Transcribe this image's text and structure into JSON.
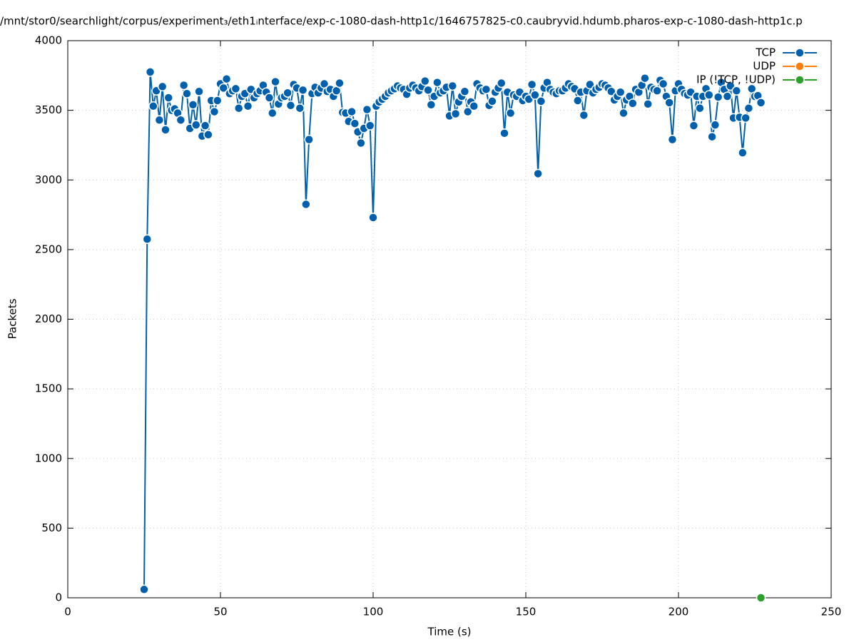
{
  "chart_data": {
    "type": "line",
    "title": "/mnt/stor0/searchlight/corpus/experiment₃/eth1ᵢnterface/exp-c-1080-dash-http1c/1646757825-c0.caubryvid.hdumb.pharos-exp-c-1080-dash-http1c.p",
    "x_label": "Time (s)",
    "y_label": "Packets",
    "xlim": [
      0,
      250
    ],
    "xticks": [
      0,
      50,
      100,
      150,
      200,
      250
    ],
    "ylim": [
      0,
      4000
    ],
    "yticks": [
      0,
      500,
      1000,
      1500,
      2000,
      2500,
      3000,
      3500,
      4000
    ],
    "grid": true,
    "legend": "top-right",
    "series": [
      {
        "name": "TCP",
        "color": "#0060ad",
        "x": [
          25,
          26,
          27,
          28,
          29,
          30,
          31,
          32,
          33,
          34,
          35,
          36,
          37,
          38,
          39,
          40,
          41,
          42,
          43,
          44,
          45,
          46,
          47,
          48,
          49,
          50,
          51,
          52,
          53,
          54,
          55,
          56,
          57,
          58,
          59,
          60,
          61,
          62,
          63,
          64,
          65,
          66,
          67,
          68,
          69,
          70,
          71,
          72,
          73,
          74,
          75,
          76,
          77,
          78,
          79,
          80,
          81,
          82,
          83,
          84,
          85,
          86,
          87,
          88,
          89,
          90,
          91,
          92,
          93,
          94,
          95,
          96,
          97,
          98,
          99,
          100,
          101,
          102,
          103,
          104,
          105,
          106,
          107,
          108,
          109,
          110,
          111,
          112,
          113,
          114,
          115,
          116,
          117,
          118,
          119,
          120,
          121,
          122,
          123,
          124,
          125,
          126,
          127,
          128,
          129,
          130,
          131,
          132,
          133,
          134,
          135,
          136,
          137,
          138,
          139,
          140,
          141,
          142,
          143,
          144,
          145,
          146,
          147,
          148,
          149,
          150,
          151,
          152,
          153,
          154,
          155,
          156,
          157,
          158,
          159,
          160,
          161,
          162,
          163,
          164,
          165,
          166,
          167,
          168,
          169,
          170,
          171,
          172,
          173,
          174,
          175,
          176,
          177,
          178,
          179,
          180,
          181,
          182,
          183,
          184,
          185,
          186,
          187,
          188,
          189,
          190,
          191,
          192,
          193,
          194,
          195,
          196,
          197,
          198,
          199,
          200,
          201,
          202,
          203,
          204,
          205,
          206,
          207,
          208,
          209,
          210,
          211,
          212,
          213,
          214,
          215,
          216,
          217,
          218,
          219,
          220,
          221,
          222,
          223,
          224,
          225,
          226,
          227
        ],
        "values": [
          60,
          2575,
          3775,
          3530,
          3640,
          3430,
          3670,
          3360,
          3590,
          3500,
          3510,
          3480,
          3430,
          3680,
          3620,
          3370,
          3540,
          3395,
          3635,
          3315,
          3390,
          3325,
          3570,
          3490,
          3570,
          3690,
          3660,
          3725,
          3620,
          3640,
          3655,
          3515,
          3600,
          3620,
          3530,
          3650,
          3590,
          3620,
          3640,
          3680,
          3630,
          3590,
          3480,
          3705,
          3545,
          3590,
          3600,
          3625,
          3535,
          3685,
          3660,
          3515,
          3645,
          2825,
          3290,
          3620,
          3665,
          3625,
          3660,
          3690,
          3635,
          3650,
          3600,
          3640,
          3695,
          3485,
          3480,
          3420,
          3490,
          3405,
          3345,
          3265,
          3370,
          3505,
          3390,
          2730,
          3530,
          3560,
          3580,
          3600,
          3625,
          3640,
          3655,
          3675,
          3660,
          3650,
          3615,
          3660,
          3680,
          3660,
          3640,
          3670,
          3710,
          3645,
          3540,
          3600,
          3700,
          3625,
          3640,
          3665,
          3460,
          3675,
          3475,
          3560,
          3600,
          3635,
          3490,
          3560,
          3530,
          3690,
          3660,
          3640,
          3650,
          3535,
          3565,
          3630,
          3660,
          3695,
          3335,
          3630,
          3480,
          3610,
          3600,
          3630,
          3570,
          3600,
          3580,
          3685,
          3610,
          3045,
          3565,
          3660,
          3700,
          3650,
          3630,
          3620,
          3640,
          3640,
          3660,
          3690,
          3670,
          3655,
          3570,
          3630,
          3465,
          3640,
          3685,
          3625,
          3650,
          3665,
          3690,
          3680,
          3660,
          3635,
          3575,
          3600,
          3630,
          3480,
          3575,
          3600,
          3550,
          3650,
          3630,
          3680,
          3730,
          3545,
          3665,
          3650,
          3640,
          3715,
          3690,
          3600,
          3555,
          3290,
          3640,
          3690,
          3650,
          3620,
          3610,
          3630,
          3390,
          3600,
          3515,
          3600,
          3655,
          3610,
          3310,
          3395,
          3595,
          3700,
          3650,
          3600,
          3675,
          3445,
          3640,
          3450,
          3195,
          3445,
          3515,
          3655,
          3600,
          3605,
          3555
        ]
      },
      {
        "name": "UDP",
        "color": "#ff7f0e",
        "x": [],
        "values": []
      },
      {
        "name": "IP (!TCP, !UDP)",
        "color": "#2ca02c",
        "x": [
          227
        ],
        "values": [
          0
        ]
      }
    ]
  }
}
